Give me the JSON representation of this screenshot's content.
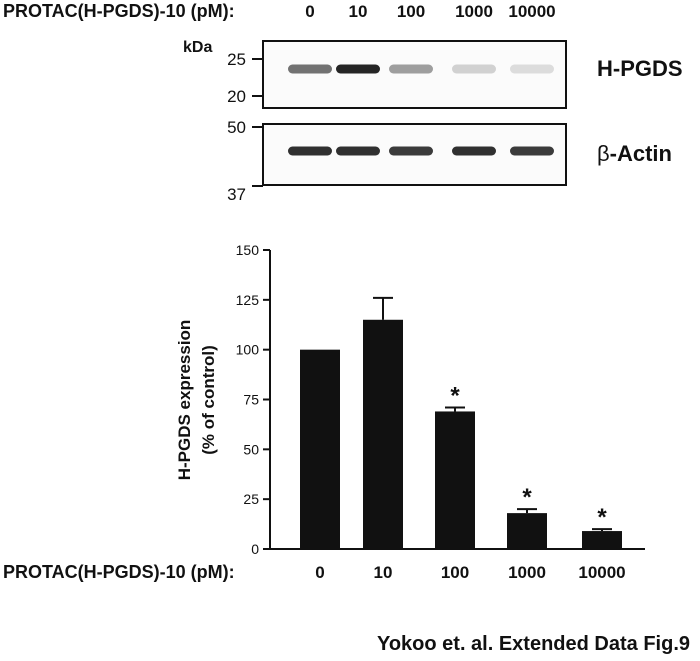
{
  "blot": {
    "treatment_label": "PROTAC(H-PGDS)-10 (pM):",
    "lanes": [
      "0",
      "10",
      "100",
      "1000",
      "10000"
    ],
    "unit_label": "kDa",
    "panels": [
      {
        "name": "H-PGDS",
        "markers": [
          "25",
          "20"
        ],
        "band_intensity": [
          0.55,
          0.9,
          0.35,
          0.12,
          0.07
        ]
      },
      {
        "name_prefix": "β",
        "name_suffix": "-Actin",
        "markers": [
          "50",
          "37"
        ],
        "band_intensity": [
          0.85,
          0.85,
          0.8,
          0.85,
          0.8
        ]
      }
    ]
  },
  "chart_data": {
    "type": "bar",
    "categories": [
      "0",
      "10",
      "100",
      "1000",
      "10000"
    ],
    "values": [
      100,
      115,
      69,
      18,
      9
    ],
    "errors": [
      0,
      11,
      2,
      2,
      1
    ],
    "significant": [
      false,
      false,
      true,
      true,
      true
    ],
    "significance_marker": "*",
    "xlabel": "PROTAC(H-PGDS)-10 (pM):",
    "ylabel_line1": "H-PGDS expression",
    "ylabel_line2": "(% of control)",
    "ylim": [
      0,
      150
    ],
    "yticks": [
      "0",
      "25",
      "50",
      "75",
      "100",
      "125",
      "150"
    ],
    "bar_color": "#111111"
  },
  "footer": {
    "credit": "Yokoo et. al. Extended Data Fig.9"
  }
}
